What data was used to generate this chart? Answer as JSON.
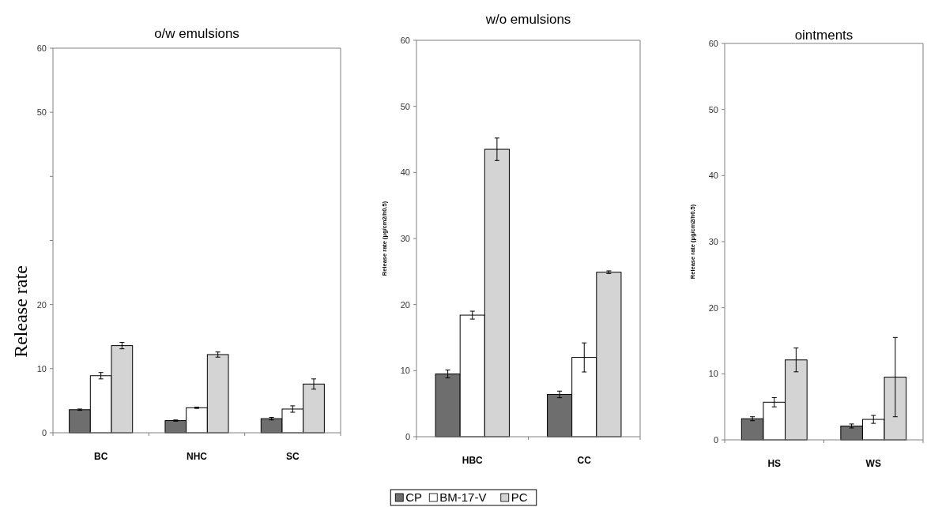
{
  "chart_data": [
    {
      "type": "bar",
      "title": "o/w emulsions",
      "ylabel": "Release rate",
      "categories": [
        "BC",
        "NHC",
        "SC"
      ],
      "ylim": [
        0,
        60
      ],
      "yticks": [
        0,
        10,
        20,
        {
          "value": 30,
          "label": null
        },
        {
          "value": 40,
          "label": null
        },
        50,
        60
      ],
      "grid": false,
      "series": [
        {
          "color": "#6e6e6e",
          "values": [
            3.6,
            1.9,
            2.2
          ],
          "errors": [
            0.1,
            0.1,
            0.2
          ]
        },
        {
          "color": "#ffffff",
          "values": [
            8.9,
            3.9,
            3.7
          ],
          "errors": [
            0.5,
            0.1,
            0.5
          ]
        },
        {
          "color": "#d4d4d4",
          "values": [
            13.6,
            12.2,
            7.6
          ],
          "errors": [
            0.5,
            0.4,
            0.8
          ]
        }
      ]
    },
    {
      "type": "bar",
      "title": "w/o emulsions",
      "ylabel": "Release rate (µg/cm2/h0.5)",
      "categories": [
        "HBC",
        "CC"
      ],
      "ylim": [
        0,
        60
      ],
      "yticks": [
        0,
        10,
        20,
        30,
        40,
        50,
        60
      ],
      "grid": false,
      "legend": "bottom",
      "series": [
        {
          "name": "CP",
          "color": "#6e6e6e",
          "values": [
            9.5,
            6.4
          ],
          "errors": [
            0.6,
            0.5
          ]
        },
        {
          "name": "BM-17-V",
          "color": "#ffffff",
          "values": [
            18.4,
            12.0
          ],
          "errors": [
            0.6,
            2.2
          ]
        },
        {
          "name": "PC",
          "color": "#d4d4d4",
          "values": [
            43.5,
            24.9
          ],
          "errors": [
            1.7,
            0.2
          ]
        }
      ]
    },
    {
      "type": "bar",
      "title": "ointments",
      "ylabel": "Release rate (µg/cm2/h0.5)",
      "categories": [
        "HS",
        "WS"
      ],
      "ylim": [
        0,
        60
      ],
      "yticks": [
        0,
        10,
        20,
        30,
        40,
        50,
        60
      ],
      "grid": false,
      "series": [
        {
          "color": "#6e6e6e",
          "values": [
            3.2,
            2.1
          ],
          "errors": [
            0.3,
            0.3
          ]
        },
        {
          "color": "#ffffff",
          "values": [
            5.7,
            3.1
          ],
          "errors": [
            0.7,
            0.6
          ]
        },
        {
          "color": "#d4d4d4",
          "values": [
            12.1,
            9.5
          ],
          "errors": [
            1.8,
            6.0
          ]
        }
      ]
    }
  ]
}
